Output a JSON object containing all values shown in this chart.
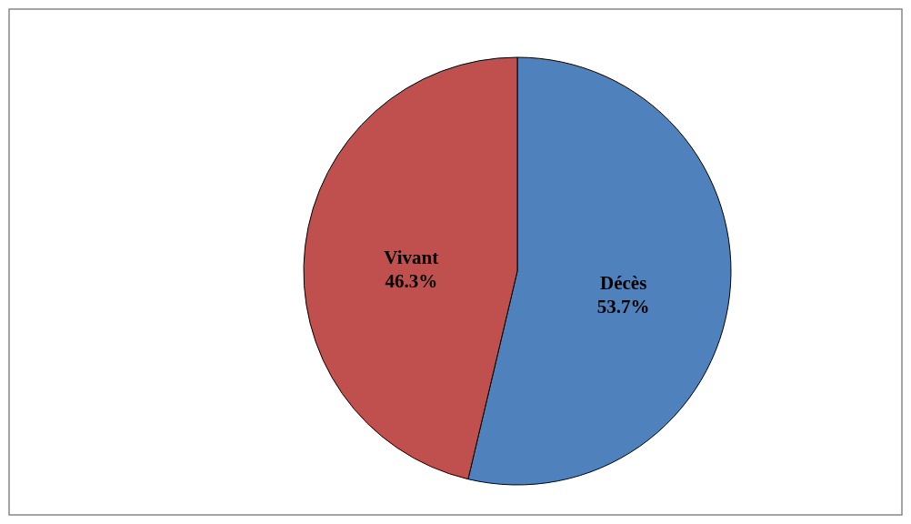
{
  "chart_data": {
    "type": "pie",
    "categories": [
      "Décès",
      "Vivant"
    ],
    "values": [
      53.7,
      46.3
    ],
    "colors": [
      "#4f81bd",
      "#c0504d"
    ],
    "value_labels": [
      "53.7%",
      "46.3%"
    ]
  }
}
